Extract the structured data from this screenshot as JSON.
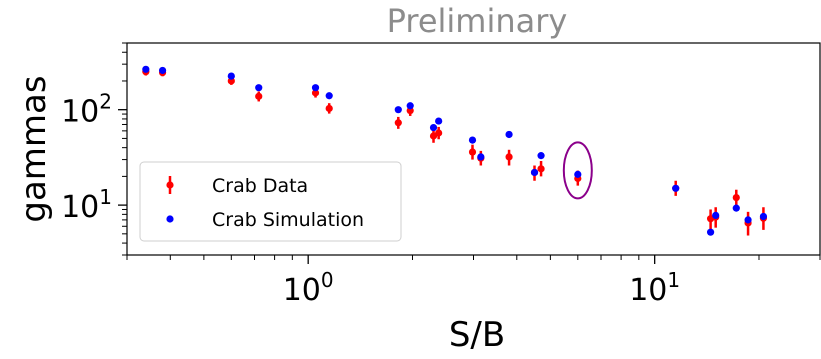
{
  "chart_data": {
    "type": "scatter",
    "title": "Preliminary",
    "xlabel": "S/B",
    "ylabel": "gammas",
    "x_scale": "log",
    "y_scale": "log",
    "xlim": [
      0.3,
      30
    ],
    "ylim": [
      3,
      500
    ],
    "x_ticks": [
      {
        "value": 1,
        "base": "10",
        "exp": "0"
      },
      {
        "value": 10,
        "base": "10",
        "exp": "1"
      }
    ],
    "y_ticks": [
      {
        "value": 10,
        "base": "10",
        "exp": "1"
      },
      {
        "value": 100,
        "base": "10",
        "exp": "2"
      }
    ],
    "legend_position": "lower-left",
    "series": [
      {
        "name": "Crab Data",
        "color": "#ff0000",
        "marker": "errorbar",
        "points": [
          {
            "x": 0.34,
            "y": 250,
            "lo": 228,
            "hi": 272
          },
          {
            "x": 0.38,
            "y": 245,
            "lo": 224,
            "hi": 266
          },
          {
            "x": 0.6,
            "y": 200,
            "lo": 182,
            "hi": 220
          },
          {
            "x": 0.72,
            "y": 138,
            "lo": 122,
            "hi": 155
          },
          {
            "x": 1.05,
            "y": 150,
            "lo": 134,
            "hi": 168
          },
          {
            "x": 1.15,
            "y": 103,
            "lo": 91,
            "hi": 117
          },
          {
            "x": 1.82,
            "y": 73,
            "lo": 63,
            "hi": 84
          },
          {
            "x": 1.97,
            "y": 98,
            "lo": 86,
            "hi": 111
          },
          {
            "x": 2.3,
            "y": 53,
            "lo": 45,
            "hi": 62
          },
          {
            "x": 2.38,
            "y": 57,
            "lo": 49,
            "hi": 66
          },
          {
            "x": 2.98,
            "y": 36,
            "lo": 30,
            "hi": 43
          },
          {
            "x": 3.15,
            "y": 31,
            "lo": 26,
            "hi": 37
          },
          {
            "x": 3.8,
            "y": 32,
            "lo": 26,
            "hi": 38
          },
          {
            "x": 4.5,
            "y": 22,
            "lo": 18,
            "hi": 26
          },
          {
            "x": 4.7,
            "y": 24,
            "lo": 20,
            "hi": 29
          },
          {
            "x": 6.0,
            "y": 19,
            "lo": 16,
            "hi": 23
          },
          {
            "x": 11.5,
            "y": 15,
            "lo": 12.5,
            "hi": 18
          },
          {
            "x": 14.5,
            "y": 7.2,
            "lo": 5.6,
            "hi": 9.0
          },
          {
            "x": 15.0,
            "y": 7.5,
            "lo": 5.8,
            "hi": 9.5
          },
          {
            "x": 17.2,
            "y": 12,
            "lo": 10,
            "hi": 14.5
          },
          {
            "x": 18.6,
            "y": 6.5,
            "lo": 4.8,
            "hi": 8.5
          },
          {
            "x": 20.6,
            "y": 7.3,
            "lo": 5.5,
            "hi": 9.5
          }
        ]
      },
      {
        "name": "Crab Simulation",
        "color": "#0000ff",
        "marker": "dot",
        "points": [
          {
            "x": 0.34,
            "y": 265
          },
          {
            "x": 0.38,
            "y": 258
          },
          {
            "x": 0.6,
            "y": 225
          },
          {
            "x": 0.72,
            "y": 170
          },
          {
            "x": 1.05,
            "y": 170
          },
          {
            "x": 1.15,
            "y": 140
          },
          {
            "x": 1.82,
            "y": 100
          },
          {
            "x": 1.97,
            "y": 110
          },
          {
            "x": 2.3,
            "y": 65
          },
          {
            "x": 2.38,
            "y": 76
          },
          {
            "x": 2.98,
            "y": 48
          },
          {
            "x": 3.15,
            "y": 32
          },
          {
            "x": 3.8,
            "y": 55
          },
          {
            "x": 4.5,
            "y": 22
          },
          {
            "x": 4.7,
            "y": 33
          },
          {
            "x": 6.0,
            "y": 21
          },
          {
            "x": 11.5,
            "y": 15
          },
          {
            "x": 14.5,
            "y": 5.2
          },
          {
            "x": 15.0,
            "y": 7.8
          },
          {
            "x": 17.2,
            "y": 9.3
          },
          {
            "x": 18.6,
            "y": 7.0
          },
          {
            "x": 20.6,
            "y": 7.6
          }
        ]
      }
    ],
    "annotation": {
      "shape": "ellipse",
      "color": "#8b008b",
      "x": 6.0,
      "y": 20
    }
  }
}
